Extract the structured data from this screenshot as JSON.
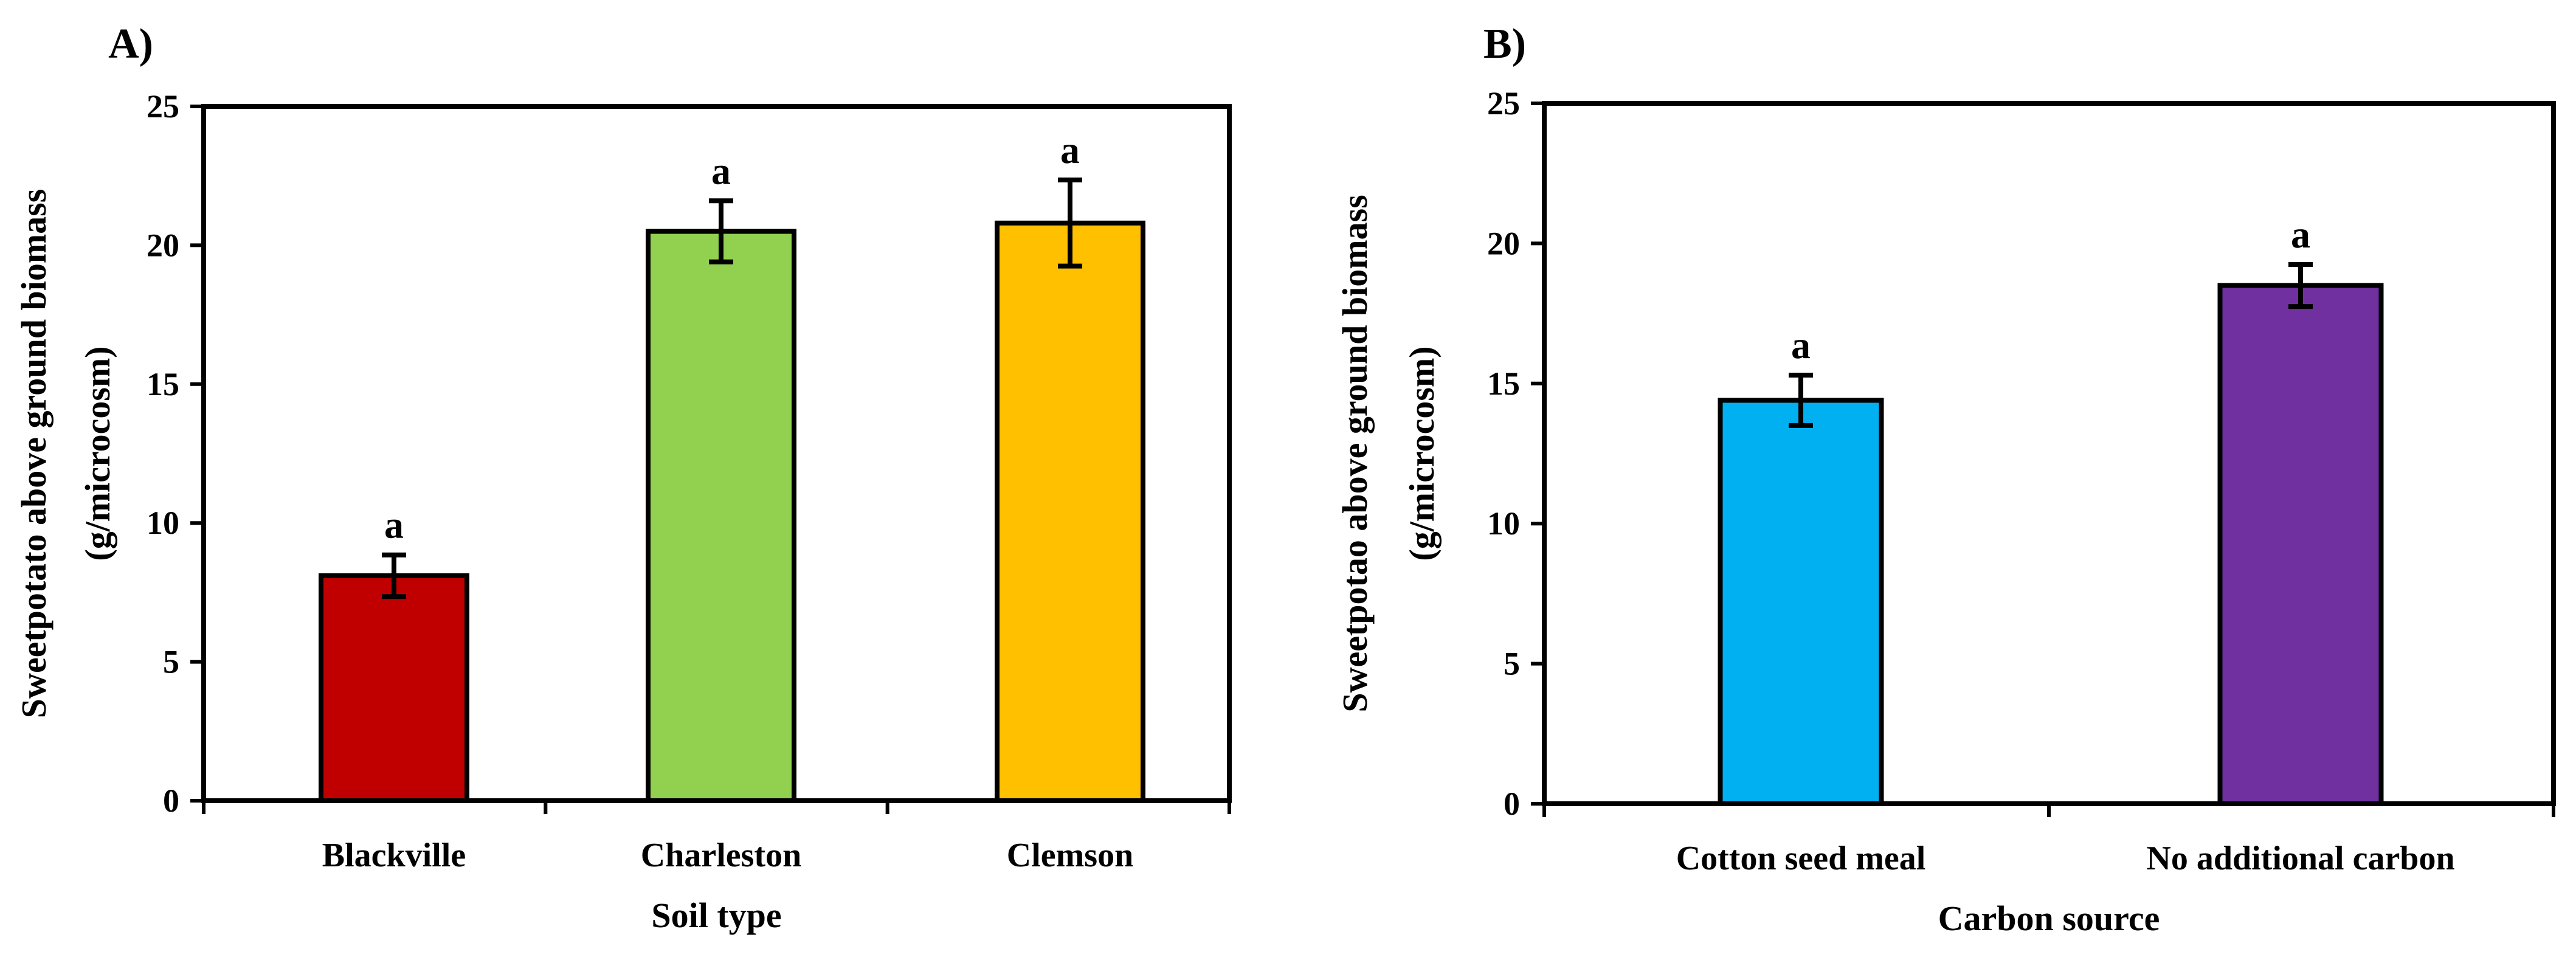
{
  "chart_data": [
    {
      "type": "bar",
      "panel": "A)",
      "categories": [
        "Blackville",
        "Charleston",
        "Clemson"
      ],
      "values": [
        8.1,
        20.5,
        20.8
      ],
      "errors": [
        0.75,
        1.1,
        1.55
      ],
      "significance": [
        "a",
        "a",
        "a"
      ],
      "colors": [
        "#C00000",
        "#92D050",
        "#FFC000"
      ],
      "xlabel": "Soil type",
      "ylabel": [
        "Sweetpotato above ground biomass",
        "(g/microcosm)"
      ],
      "ylim": [
        0,
        25
      ],
      "yticks": [
        0,
        5,
        10,
        15,
        20,
        25
      ],
      "grid": false,
      "legend": "none"
    },
    {
      "type": "bar",
      "panel": "B)",
      "categories": [
        "Cotton seed meal",
        "No additional carbon"
      ],
      "values": [
        14.4,
        18.5
      ],
      "errors": [
        0.9,
        0.75
      ],
      "significance": [
        "a",
        "a"
      ],
      "colors": [
        "#00B0F0",
        "#7030A0"
      ],
      "xlabel": "Carbon source",
      "ylabel": [
        "Sweetpotao above ground biomass",
        "(g/microcosm)"
      ],
      "ylim": [
        0,
        25
      ],
      "yticks": [
        0,
        5,
        10,
        15,
        20,
        25
      ],
      "grid": false,
      "legend": "none"
    }
  ]
}
